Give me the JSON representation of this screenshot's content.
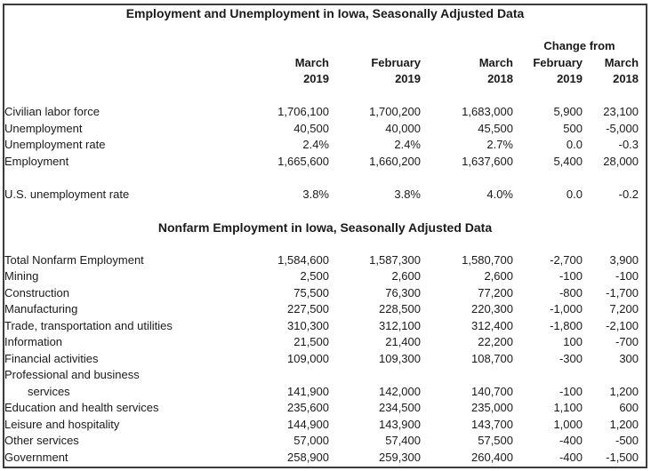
{
  "page": {
    "title": "Employment and Unemployment in Iowa, Seasonally Adjusted Data",
    "change_from_label": "Change from",
    "col_headers": [
      {
        "month": "March",
        "year": "2019"
      },
      {
        "month": "February",
        "year": "2019"
      },
      {
        "month": "March",
        "year": "2018"
      },
      {
        "month": "February",
        "year": "2019"
      },
      {
        "month": "March",
        "year": "2018"
      }
    ],
    "colors": {
      "text": "#1a1a1a",
      "border": "#3c3c3c",
      "background": "#ffffff"
    }
  },
  "chart_data": {
    "type": "table",
    "title": "Employment and Unemployment in Iowa, Seasonally Adjusted Data",
    "column_group_label": "Change from",
    "columns": [
      "March 2019",
      "February 2019",
      "March 2018",
      "Change from February 2019",
      "Change from March 2018"
    ],
    "sections": [
      {
        "heading": "Employment and Unemployment in Iowa, Seasonally Adjusted Data",
        "rows": [
          {
            "label": "Civilian labor force",
            "values": [
              "1,706,100",
              "1,700,200",
              "1,683,000",
              "5,900",
              "23,100"
            ]
          },
          {
            "label": "Unemployment",
            "values": [
              "40,500",
              "40,000",
              "45,500",
              "500",
              "-5,000"
            ]
          },
          {
            "label": "Unemployment rate",
            "values": [
              "2.4%",
              "2.4%",
              "2.7%",
              "0.0",
              "-0.3"
            ]
          },
          {
            "label": "Employment",
            "values": [
              "1,665,600",
              "1,660,200",
              "1,637,600",
              "5,400",
              "28,000"
            ]
          },
          {
            "label": "U.S. unemployment rate",
            "values": [
              "3.8%",
              "3.8%",
              "4.0%",
              "0.0",
              "-0.2"
            ],
            "gap_before": true
          }
        ]
      },
      {
        "heading": "Nonfarm Employment in Iowa, Seasonally Adjusted Data",
        "rows": [
          {
            "label": "Total Nonfarm Employment",
            "values": [
              "1,584,600",
              "1,587,300",
              "1,580,700",
              "-2,700",
              "3,900"
            ]
          },
          {
            "label": "Mining",
            "values": [
              "2,500",
              "2,600",
              "2,600",
              "-100",
              "-100"
            ]
          },
          {
            "label": "Construction",
            "values": [
              "75,500",
              "76,300",
              "77,200",
              "-800",
              "-1,700"
            ]
          },
          {
            "label": "Manufacturing",
            "values": [
              "227,500",
              "228,500",
              "220,300",
              "-1,000",
              "7,200"
            ]
          },
          {
            "label": "Trade, transportation and utilities",
            "values": [
              "310,300",
              "312,100",
              "312,400",
              "-1,800",
              "-2,100"
            ]
          },
          {
            "label": "Information",
            "values": [
              "21,500",
              "21,400",
              "22,200",
              "100",
              "-700"
            ]
          },
          {
            "label": "Financial activities",
            "values": [
              "109,000",
              "109,300",
              "108,700",
              "-300",
              "300"
            ]
          },
          {
            "label": "Professional and business",
            "values": [
              "",
              "",
              "",
              "",
              ""
            ]
          },
          {
            "label": "services",
            "values": [
              "141,900",
              "142,000",
              "140,700",
              "-100",
              "1,200"
            ],
            "indent": true
          },
          {
            "label": "Education and health services",
            "values": [
              "235,600",
              "234,500",
              "235,000",
              "1,100",
              "600"
            ]
          },
          {
            "label": "Leisure and hospitality",
            "values": [
              "144,900",
              "143,900",
              "143,700",
              "1,000",
              "1,200"
            ]
          },
          {
            "label": "Other services",
            "values": [
              "57,000",
              "57,400",
              "57,500",
              "-400",
              "-500"
            ]
          },
          {
            "label": "Government",
            "values": [
              "258,900",
              "259,300",
              "260,400",
              "-400",
              "-1,500"
            ]
          }
        ]
      }
    ]
  }
}
